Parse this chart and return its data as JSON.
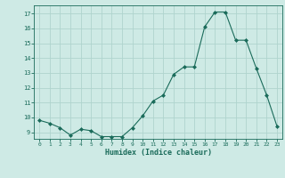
{
  "x": [
    0,
    1,
    2,
    3,
    4,
    5,
    6,
    7,
    8,
    9,
    10,
    11,
    12,
    13,
    14,
    15,
    16,
    17,
    18,
    19,
    20,
    21,
    22,
    23
  ],
  "y": [
    9.8,
    9.6,
    9.3,
    8.8,
    9.2,
    9.1,
    8.7,
    8.7,
    8.7,
    9.3,
    10.1,
    11.1,
    11.5,
    12.9,
    13.4,
    13.4,
    16.1,
    17.1,
    17.1,
    15.2,
    15.2,
    13.3,
    11.5,
    9.4
  ],
  "line_color": "#1a6b5a",
  "marker": "D",
  "marker_size": 2.0,
  "bg_color": "#ceeae5",
  "grid_color": "#afd4ce",
  "xlabel": "Humidex (Indice chaleur)",
  "ylabel_ticks": [
    9,
    10,
    11,
    12,
    13,
    14,
    15,
    16,
    17
  ],
  "ylim": [
    8.55,
    17.55
  ],
  "xlim": [
    -0.5,
    23.5
  ]
}
